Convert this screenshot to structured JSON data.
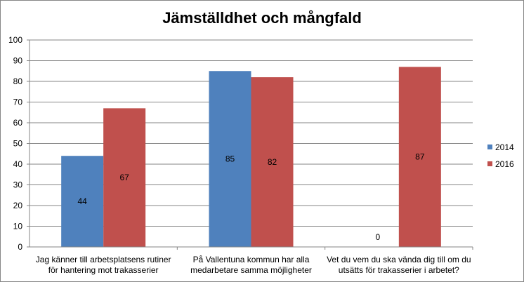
{
  "chart_data": {
    "type": "bar",
    "title": "Jämställdhet och mångfald",
    "categories": [
      [
        "Jag känner till arbetsplatsens rutiner",
        "för hantering mot trakasserier"
      ],
      [
        "På Vallentuna kommun har alla",
        "medarbetare samma möjligheter"
      ],
      [
        "Vet du vem du ska vända dig till om du",
        "utsätts för trakasserier i arbetet?"
      ]
    ],
    "series": [
      {
        "name": "2014",
        "color": "#4f81bd",
        "values": [
          44,
          85,
          0
        ]
      },
      {
        "name": "2016",
        "color": "#c0504d",
        "values": [
          67,
          82,
          87
        ]
      }
    ],
    "ylim": [
      0,
      100
    ],
    "yticks": [
      0,
      10,
      20,
      30,
      40,
      50,
      60,
      70,
      80,
      90,
      100
    ],
    "grid": true,
    "legend": "right"
  }
}
